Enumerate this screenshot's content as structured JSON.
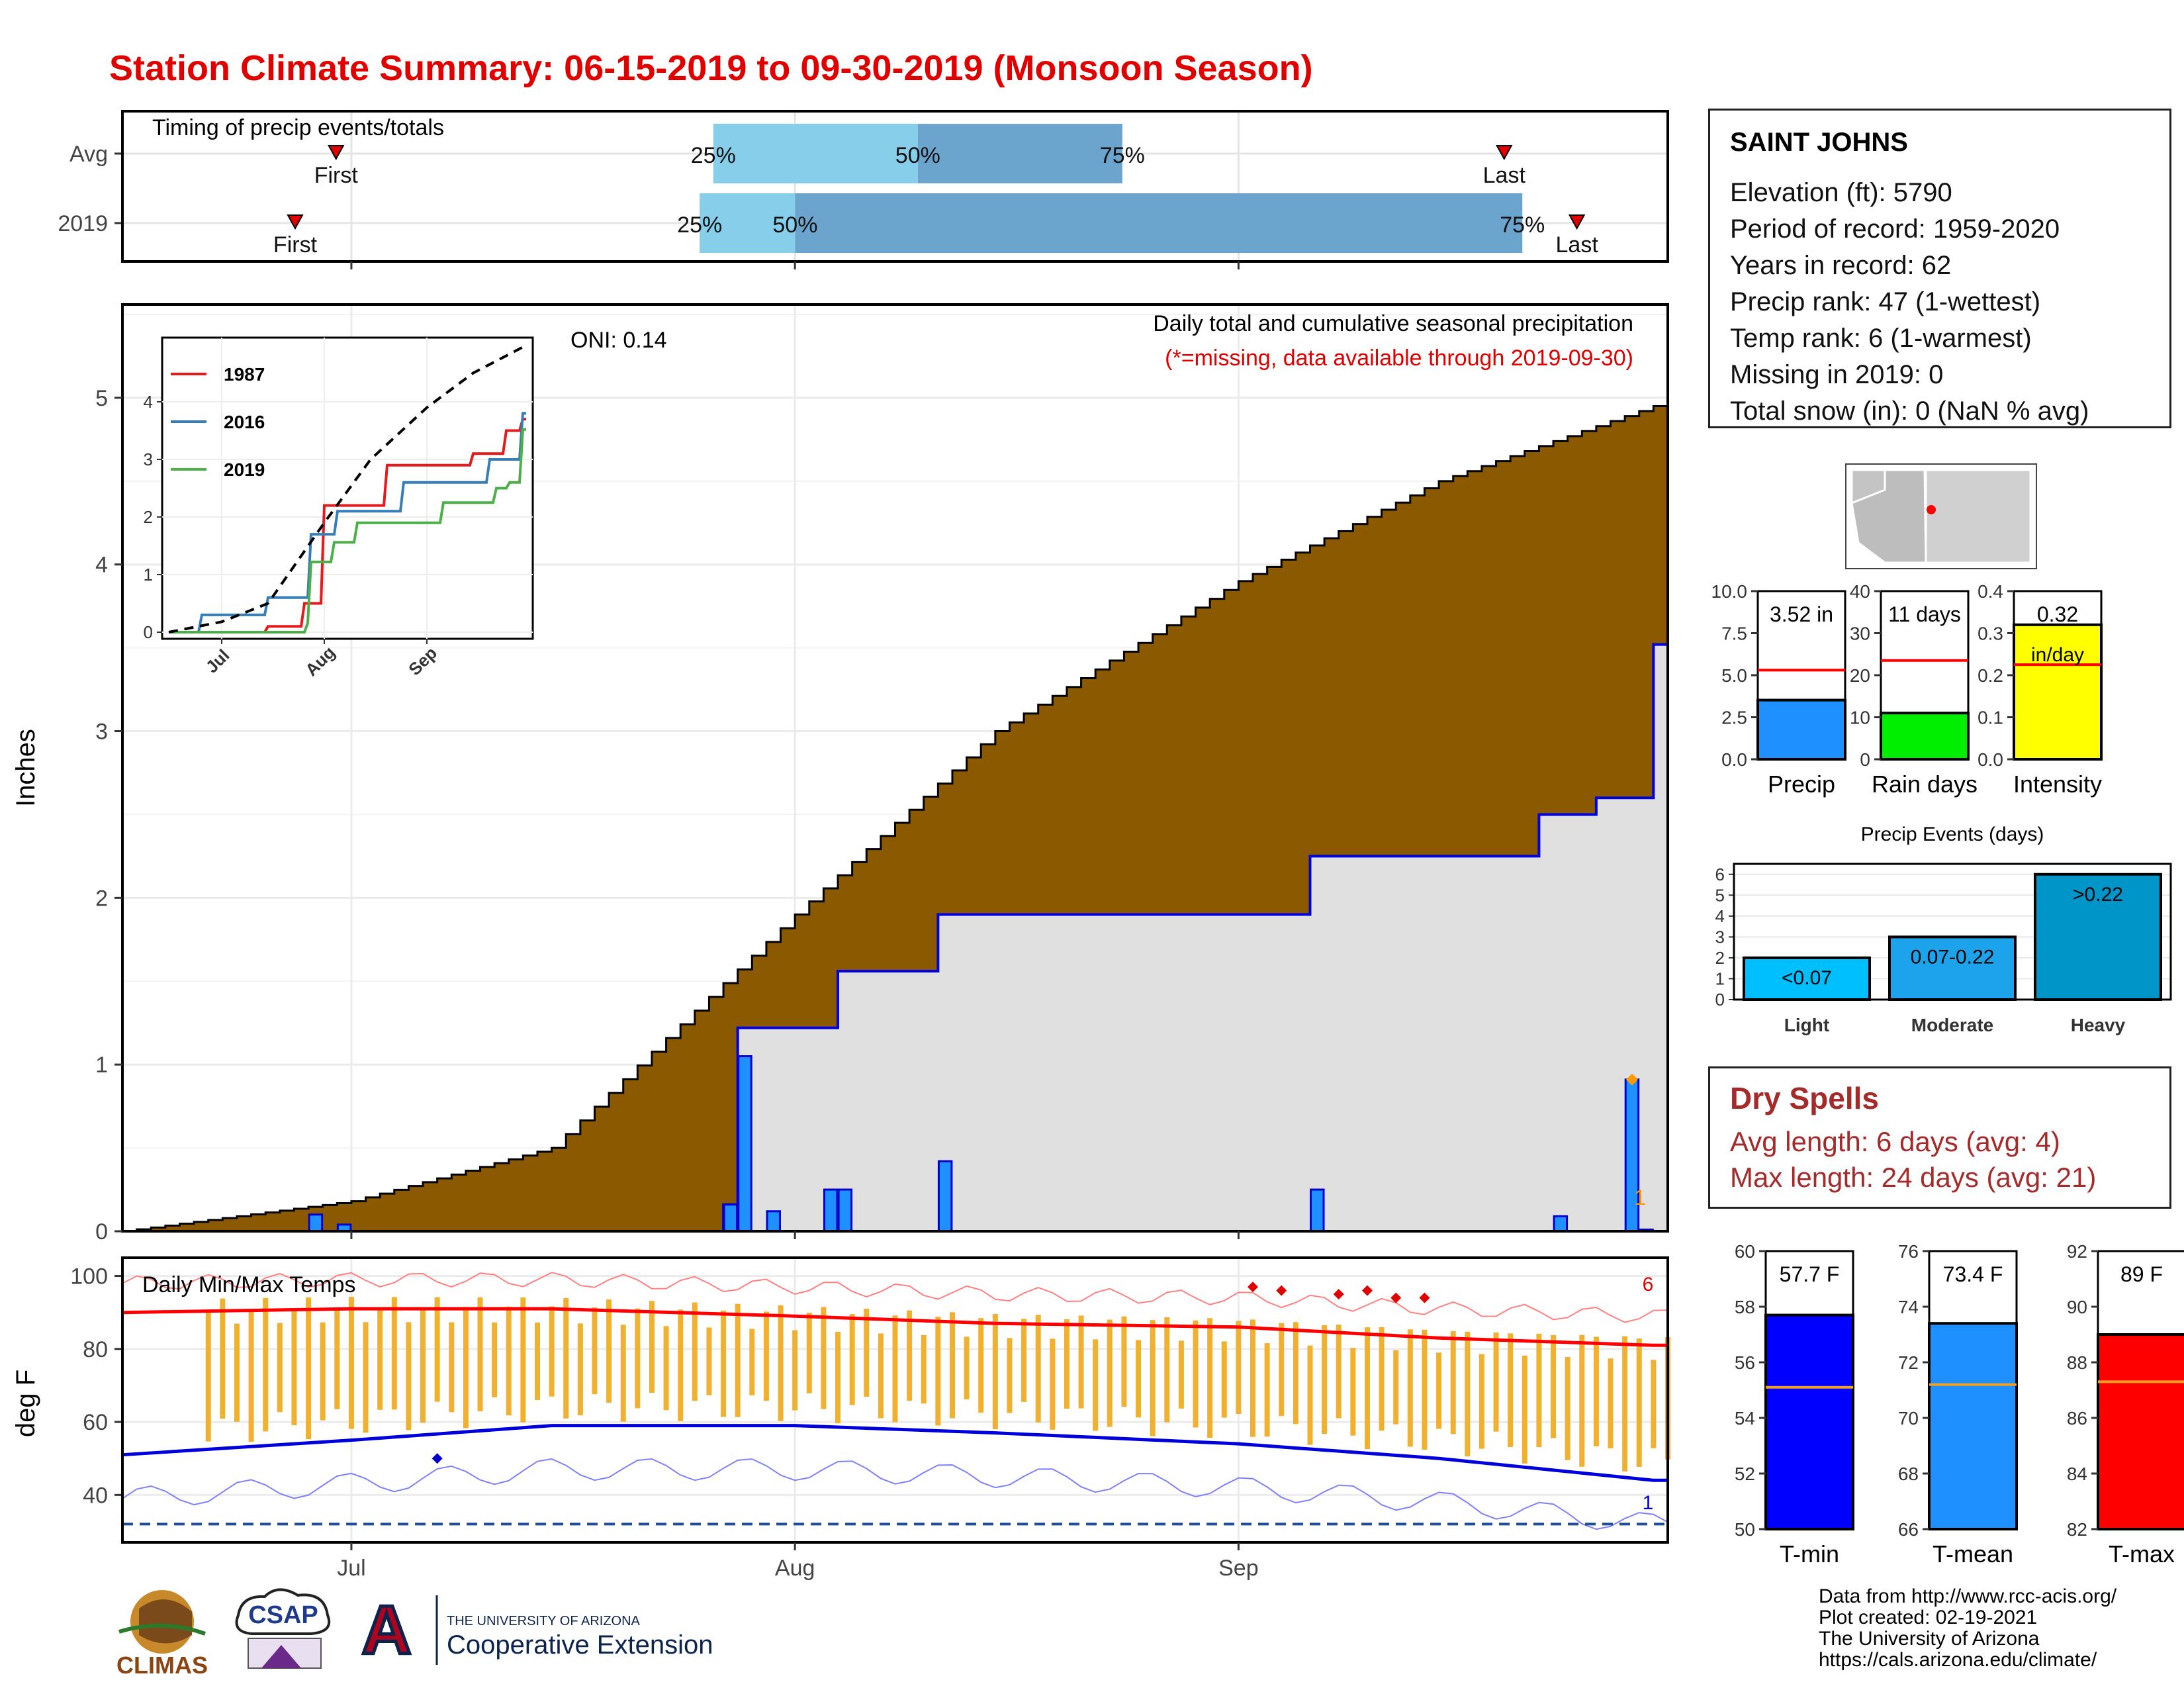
{
  "title": "Station Climate Summary: 06-15-2019 to 09-30-2019 (Monsoon Season)",
  "timing_panel": {
    "title": "Timing of precip events/totals",
    "rows": [
      {
        "label": "Avg",
        "first": "First",
        "last": "Last",
        "q25": "25%",
        "q50": "50%",
        "q75": "75%",
        "first_day": 47,
        "last_day": 304,
        "q25_day": 130,
        "q50_day": 175,
        "q75_day": 220
      },
      {
        "label": "2019",
        "first": "First",
        "last": "Last",
        "q25": "25%",
        "q50": "50%",
        "q75": "75%",
        "first_day": 38,
        "last_day": 320,
        "q25_day": 127,
        "q50_day": 148,
        "q75_day": 308
      }
    ]
  },
  "station": {
    "name": "SAINT JOHNS",
    "lines": [
      "Elevation (ft): 5790",
      "Period of record: 1959-2020",
      "Years in record: 62",
      "Precip rank: 47 (1-wettest)",
      "Temp rank: 6 (1-warmest)",
      "Missing in 2019: 0",
      "Total snow (in): 0 (NaN % avg)"
    ]
  },
  "precip_panel": {
    "ylabel": "Inches",
    "oni": "ONI: 0.14",
    "subtitle": "Daily total and cumulative seasonal precipitation",
    "missing_note": "(*=missing, data available through 2019-09-30)",
    "count_label": "1",
    "month_labels": [
      "Jul",
      "Aug",
      "Sep"
    ],
    "y_ticks": [
      "0",
      "1",
      "2",
      "3",
      "4",
      "5"
    ]
  },
  "inset": {
    "legend": [
      "1987",
      "2016",
      "2019"
    ],
    "legend_colors": [
      "#e41a1c",
      "#377eb8",
      "#4daf4a"
    ],
    "y_ticks": [
      "0",
      "1",
      "2",
      "3",
      "4"
    ],
    "x_ticks": [
      "Jul",
      "Aug",
      "Sep"
    ]
  },
  "gauges_precip": [
    {
      "label": "Precip",
      "value_text": "3.52 in",
      "value_text2": "",
      "ticks": [
        "0.0",
        "2.5",
        "5.0",
        "7.5",
        "10.0"
      ],
      "max": 10.0,
      "value": 3.52,
      "avg": 5.3,
      "color": "#1e90ff"
    },
    {
      "label": "Rain days",
      "value_text": "11 days",
      "value_text2": "",
      "ticks": [
        "0",
        "10",
        "20",
        "30",
        "40"
      ],
      "max": 40,
      "value": 11,
      "avg": 23.5,
      "color": "#00ee00"
    },
    {
      "label": "Intensity",
      "value_text": "0.32",
      "value_text2": "in/day",
      "ticks": [
        "0.0",
        "0.1",
        "0.2",
        "0.3",
        "0.4"
      ],
      "max": 0.4,
      "value": 0.32,
      "avg": 0.225,
      "color": "#ffff00"
    }
  ],
  "precip_events": {
    "title": "Precip Events (days)",
    "y_ticks": [
      "0",
      "1",
      "2",
      "3",
      "4",
      "5",
      "6"
    ],
    "categories": [
      "Light",
      "Moderate",
      "Heavy"
    ],
    "values": [
      2,
      3,
      6
    ],
    "range_labels": [
      "<0.07",
      "0.07-0.22",
      ">0.22"
    ],
    "colors": [
      "#00bfff",
      "#1ca3ec",
      "#0095c8"
    ]
  },
  "dry_spells": {
    "title": "Dry Spells",
    "avg_line": "Avg length: 6 days (avg: 4)",
    "max_line": "Max length: 24 days (avg: 21)"
  },
  "temp_panel": {
    "title": "Daily Min/Max Temps",
    "ylabel": "deg F",
    "y_ticks": [
      "40",
      "60",
      "80",
      "100"
    ],
    "month_labels": [
      "Jul",
      "Aug",
      "Sep"
    ],
    "count_high": "6",
    "count_low": "1"
  },
  "gauges_temp": [
    {
      "label": "T-min",
      "value_text": "57.7 F",
      "ticks": [
        "50",
        "52",
        "54",
        "56",
        "58",
        "60"
      ],
      "min": 50,
      "max": 60,
      "value": 57.7,
      "avg": 55.1,
      "color": "#0000ff"
    },
    {
      "label": "T-mean",
      "value_text": "73.4 F",
      "ticks": [
        "66",
        "68",
        "70",
        "72",
        "74",
        "76"
      ],
      "min": 66,
      "max": 76,
      "value": 73.4,
      "avg": 71.2,
      "color": "#1e90ff"
    },
    {
      "label": "T-max",
      "value_text": "89 F",
      "ticks": [
        "82",
        "84",
        "86",
        "88",
        "90",
        "92"
      ],
      "min": 82,
      "max": 92,
      "value": 89,
      "avg": 87.3,
      "color": "#ff0000"
    }
  ],
  "credits": [
    "Data from http://www.rcc-acis.org/",
    "Plot created: 02-19-2021",
    "The University of Arizona",
    "https://cals.arizona.edu/climate/"
  ],
  "logos": {
    "climas": "CLIMAS",
    "csap": "CSAP",
    "ua_small": "THE UNIVERSITY OF ARIZONA",
    "ua_big": "Cooperative Extension",
    "ua_letter": "A"
  },
  "chart_data": [
    {
      "type": "area",
      "title": "Daily total and cumulative seasonal precipitation",
      "ylabel": "Inches",
      "x_range": [
        "2019-06-15",
        "2019-09-30"
      ],
      "ylim": [
        0,
        5.5
      ],
      "series": [
        {
          "name": "2019",
          "x": [
            "2019-06-15",
            "2019-07-27",
            "2019-07-28",
            "2019-08-04",
            "2019-08-11",
            "2019-09-06",
            "2019-09-22",
            "2019-09-26",
            "2019-09-30"
          ],
          "values": [
            0.0,
            0.16,
            1.22,
            1.56,
            1.9,
            2.25,
            2.5,
            2.6,
            3.52
          ]
        }
      ],
      "average_cumulative": {
        "x": [
          "2019-06-15",
          "2019-07-01",
          "2019-07-15",
          "2019-08-01",
          "2019-08-15",
          "2019-09-01",
          "2019-09-15",
          "2019-09-30"
        ],
        "values": [
          0.0,
          0.18,
          0.5,
          1.9,
          3.0,
          3.9,
          4.5,
          4.95
        ]
      },
      "daily_bars": {
        "x": [
          "2019-06-28",
          "2019-06-30",
          "2019-07-27",
          "2019-07-28",
          "2019-07-30",
          "2019-08-03",
          "2019-08-04",
          "2019-08-11",
          "2019-09-06",
          "2019-09-23",
          "2019-09-28",
          "2019-09-29"
        ],
        "values": [
          0.1,
          0.04,
          0.16,
          1.05,
          0.12,
          0.25,
          0.25,
          0.42,
          0.25,
          0.09,
          0.91,
          0.01
        ]
      }
    },
    {
      "type": "line",
      "title": "",
      "x_ticks": [
        "Jul",
        "Aug",
        "Sep"
      ],
      "ylim": [
        0,
        5
      ],
      "series": [
        {
          "name": "1987",
          "x": [
            "2019-06-15",
            "2019-07-15",
            "2019-07-26",
            "2019-08-01",
            "2019-08-20",
            "2019-09-15",
            "2019-09-25",
            "2019-09-30"
          ],
          "values": [
            0.0,
            0.1,
            0.5,
            2.2,
            2.9,
            3.1,
            3.5,
            3.7
          ]
        },
        {
          "name": "2016",
          "x": [
            "2019-06-15",
            "2019-06-25",
            "2019-07-15",
            "2019-07-28",
            "2019-08-05",
            "2019-08-25",
            "2019-09-20",
            "2019-09-30"
          ],
          "values": [
            0.0,
            0.3,
            0.6,
            1.7,
            2.1,
            2.6,
            3.0,
            3.8
          ]
        },
        {
          "name": "2019",
          "x": [
            "2019-06-15",
            "2019-07-27",
            "2019-07-28",
            "2019-08-04",
            "2019-08-11",
            "2019-09-06",
            "2019-09-22",
            "2019-09-26",
            "2019-09-30"
          ],
          "values": [
            0.0,
            0.16,
            1.22,
            1.56,
            1.9,
            2.25,
            2.5,
            2.6,
            3.52
          ]
        },
        {
          "name": "",
          "x": [
            "2019-06-15",
            "2019-07-01",
            "2019-07-15",
            "2019-08-01",
            "2019-08-15",
            "2019-09-01",
            "2019-09-15",
            "2019-09-30"
          ],
          "values": [
            0.0,
            0.18,
            0.5,
            1.9,
            3.0,
            3.9,
            4.5,
            4.95
          ]
        }
      ]
    },
    {
      "type": "bar",
      "title": "Daily Min/Max Temps",
      "ylabel": "deg F",
      "ylim": [
        27,
        105
      ],
      "x_range": [
        "2019-06-15",
        "2019-09-30"
      ],
      "series": [
        {
          "name": "",
          "x": [
            "2019-06-15",
            "2019-07-01",
            "2019-07-15",
            "2019-08-01",
            "2019-08-15",
            "2019-09-01",
            "2019-09-15",
            "2019-09-30"
          ],
          "values": [
            90,
            91,
            91,
            89,
            87,
            86,
            83,
            81
          ]
        },
        {
          "name": "",
          "x": [
            "2019-06-15",
            "2019-07-01",
            "2019-07-15",
            "2019-08-01",
            "2019-08-15",
            "2019-09-01",
            "2019-09-15",
            "2019-09-30"
          ],
          "values": [
            51,
            55,
            59,
            59,
            57,
            54,
            50,
            44
          ]
        }
      ],
      "record_line_low": 32
    },
    {
      "type": "bar",
      "title": "Precip Events (days)",
      "categories": [
        "Light",
        "Moderate",
        "Heavy"
      ],
      "values": [
        2,
        3,
        6
      ],
      "ylim": [
        0,
        6.5
      ]
    }
  ]
}
